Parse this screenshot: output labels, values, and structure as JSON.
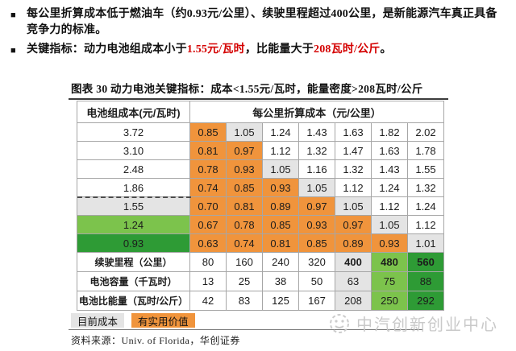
{
  "bullets": [
    {
      "parts": [
        {
          "text": "每公里折算成本低于燃油车（约0.93元/公里）、续驶里程超过400公里，是新能源汽车真正具备竞争力的标准。",
          "red": false
        }
      ]
    },
    {
      "parts": [
        {
          "text": "关键指标：动力电池组成本小于",
          "red": false
        },
        {
          "text": "1.55元/瓦时",
          "red": true
        },
        {
          "text": "，比能量大于",
          "red": false
        },
        {
          "text": "208瓦时/公斤",
          "red": true
        },
        {
          "text": "。",
          "red": false
        }
      ]
    }
  ],
  "figure": {
    "title": "图表 30  动力电池关键指标：成本<1.55元/瓦时，能量密度>208瓦时/公斤"
  },
  "table": {
    "header": {
      "col1": "电池组成本(元/瓦时)",
      "col2": "每公里折算成本（元/公里）"
    },
    "cost_rows": [
      {
        "label": "3.72",
        "label_bg": "white",
        "threshold_line": false,
        "cells": [
          {
            "v": "0.85",
            "bg": "orange"
          },
          {
            "v": "1.05",
            "bg": "gray"
          },
          {
            "v": "1.24",
            "bg": "white"
          },
          {
            "v": "1.43",
            "bg": "white"
          },
          {
            "v": "1.63",
            "bg": "white"
          },
          {
            "v": "1.82",
            "bg": "white"
          },
          {
            "v": "2.02",
            "bg": "white"
          }
        ]
      },
      {
        "label": "3.10",
        "label_bg": "white",
        "threshold_line": false,
        "cells": [
          {
            "v": "0.81",
            "bg": "orange"
          },
          {
            "v": "0.97",
            "bg": "orange"
          },
          {
            "v": "1.12",
            "bg": "white"
          },
          {
            "v": "1.32",
            "bg": "white"
          },
          {
            "v": "1.47",
            "bg": "white"
          },
          {
            "v": "1.63",
            "bg": "white"
          },
          {
            "v": "1.78",
            "bg": "white"
          }
        ]
      },
      {
        "label": "2.48",
        "label_bg": "white",
        "threshold_line": false,
        "cells": [
          {
            "v": "0.78",
            "bg": "orange"
          },
          {
            "v": "0.93",
            "bg": "orange"
          },
          {
            "v": "1.05",
            "bg": "gray"
          },
          {
            "v": "1.16",
            "bg": "white"
          },
          {
            "v": "1.32",
            "bg": "white"
          },
          {
            "v": "1.43",
            "bg": "white"
          },
          {
            "v": "1.55",
            "bg": "white"
          }
        ]
      },
      {
        "label": "1.86",
        "label_bg": "white",
        "threshold_line": false,
        "cells": [
          {
            "v": "0.74",
            "bg": "orange"
          },
          {
            "v": "0.85",
            "bg": "orange"
          },
          {
            "v": "0.93",
            "bg": "orange"
          },
          {
            "v": "1.05",
            "bg": "gray"
          },
          {
            "v": "1.12",
            "bg": "white"
          },
          {
            "v": "1.24",
            "bg": "white"
          },
          {
            "v": "1.32",
            "bg": "white"
          }
        ]
      },
      {
        "label": "1.55",
        "label_bg": "gray",
        "threshold_line": true,
        "cells": [
          {
            "v": "0.70",
            "bg": "orange"
          },
          {
            "v": "0.81",
            "bg": "orange"
          },
          {
            "v": "0.89",
            "bg": "orange"
          },
          {
            "v": "0.97",
            "bg": "orange"
          },
          {
            "v": "1.05",
            "bg": "gray"
          },
          {
            "v": "1.12",
            "bg": "white"
          },
          {
            "v": "1.24",
            "bg": "white"
          }
        ]
      },
      {
        "label": "1.24",
        "label_bg": "lightgreen",
        "threshold_line": false,
        "cells": [
          {
            "v": "0.67",
            "bg": "orange"
          },
          {
            "v": "0.78",
            "bg": "orange"
          },
          {
            "v": "0.85",
            "bg": "orange"
          },
          {
            "v": "0.93",
            "bg": "orange"
          },
          {
            "v": "0.97",
            "bg": "orange"
          },
          {
            "v": "1.05",
            "bg": "gray"
          },
          {
            "v": "1.12",
            "bg": "white"
          }
        ]
      },
      {
        "label": "0.93",
        "label_bg": "darkgreen",
        "threshold_line": false,
        "cells": [
          {
            "v": "0.63",
            "bg": "orange"
          },
          {
            "v": "0.74",
            "bg": "orange"
          },
          {
            "v": "0.81",
            "bg": "orange"
          },
          {
            "v": "0.85",
            "bg": "orange"
          },
          {
            "v": "0.89",
            "bg": "orange"
          },
          {
            "v": "0.93",
            "bg": "orange"
          },
          {
            "v": "1.01",
            "bg": "gray"
          }
        ]
      }
    ],
    "metric_rows": [
      {
        "label": "续驶里程（公里）",
        "cells": [
          {
            "v": "80",
            "bg": "white",
            "bold": false
          },
          {
            "v": "160",
            "bg": "white",
            "bold": false
          },
          {
            "v": "240",
            "bg": "white",
            "bold": false
          },
          {
            "v": "320",
            "bg": "white",
            "bold": false
          },
          {
            "v": "400",
            "bg": "gray",
            "bold": true
          },
          {
            "v": "480",
            "bg": "lightgreen",
            "bold": true
          },
          {
            "v": "560",
            "bg": "darkgreen",
            "bold": true
          }
        ]
      },
      {
        "label": "电池容量（千瓦时）",
        "cells": [
          {
            "v": "13",
            "bg": "white",
            "bold": false
          },
          {
            "v": "25",
            "bg": "white",
            "bold": false
          },
          {
            "v": "38",
            "bg": "white",
            "bold": false
          },
          {
            "v": "50",
            "bg": "white",
            "bold": false
          },
          {
            "v": "63",
            "bg": "gray",
            "bold": false
          },
          {
            "v": "75",
            "bg": "lightgreen",
            "bold": false
          },
          {
            "v": "88",
            "bg": "darkgreen",
            "bold": false
          }
        ]
      },
      {
        "label": "电池比能量（瓦时/公斤）",
        "cells": [
          {
            "v": "42",
            "bg": "white",
            "bold": false
          },
          {
            "v": "83",
            "bg": "white",
            "bold": false
          },
          {
            "v": "125",
            "bg": "white",
            "bold": false
          },
          {
            "v": "167",
            "bg": "white",
            "bold": false
          },
          {
            "v": "208",
            "bg": "gray",
            "bold": false
          },
          {
            "v": "250",
            "bg": "lightgreen",
            "bold": false
          },
          {
            "v": "292",
            "bg": "darkgreen",
            "bold": false
          }
        ]
      }
    ]
  },
  "legend": [
    {
      "label": "目前成本",
      "bg": "gray"
    },
    {
      "label": "有实用价值",
      "bg": "orange"
    }
  ],
  "source": "资料来源：Univ. of Florida，华创证券",
  "watermark": {
    "text": "中汽创新创业中心"
  },
  "colors": {
    "orange": "#f0943c",
    "gray": "#e4e4e4",
    "light_green": "#7cc34c",
    "dark_green": "#2e9b35",
    "red_highlight": "#d40000"
  }
}
